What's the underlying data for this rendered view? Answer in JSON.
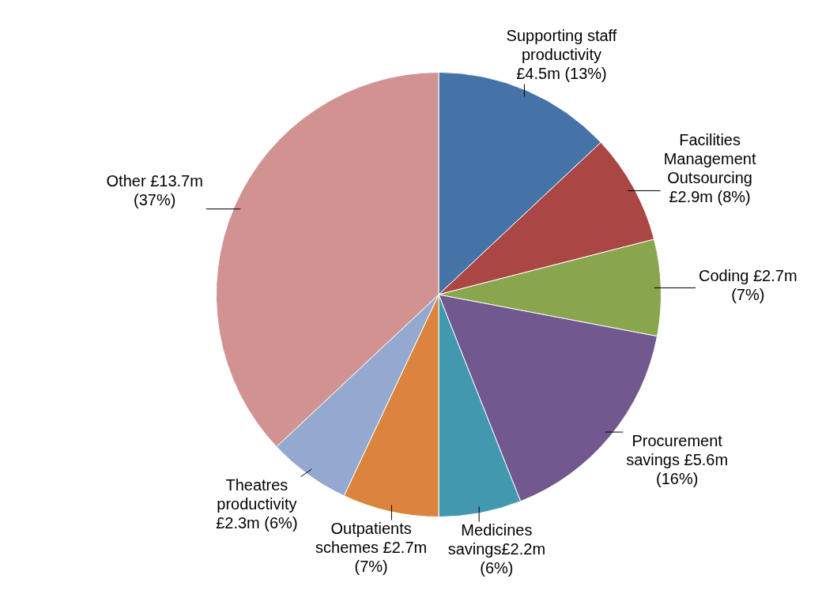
{
  "chart_data": {
    "type": "pie",
    "categories": [
      "Supporting staff productivity £4.5m (13%)",
      "Facilities Management Outsourcing £2.9m (8%)",
      "Coding £2.7m (7%)",
      "Procurement savings £5.6m (16%)",
      "Medicines savings£2.2m (6%)",
      "Outpatients schemes £2.7m (7%)",
      "Theatres productivity £2.3m (6%)",
      "Other £13.7m (37%)"
    ],
    "values": [
      13,
      8,
      7,
      16,
      6,
      7,
      6,
      37
    ],
    "colors": [
      "#4572a7",
      "#aa4643",
      "#89a54e",
      "#71588f",
      "#4198af",
      "#db843d",
      "#93a9cf",
      "#d19392"
    ],
    "legend": false
  }
}
